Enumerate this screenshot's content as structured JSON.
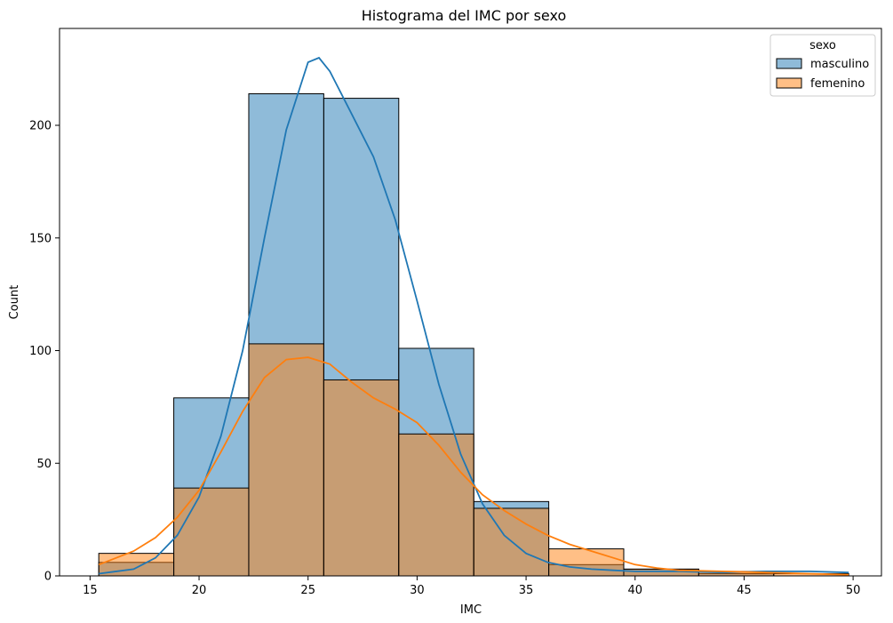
{
  "chart_data": {
    "type": "histogram",
    "title": "Histograma del IMC por sexo",
    "xlabel": "IMC",
    "ylabel": "Count",
    "xlim": [
      13.6,
      51.3
    ],
    "ylim": [
      0,
      243
    ],
    "xticks": [
      "15",
      "20",
      "25",
      "30",
      "35",
      "40",
      "45",
      "50"
    ],
    "yticks": [
      "0",
      "50",
      "100",
      "150",
      "200"
    ],
    "bin_edges": [
      15.4,
      18.84,
      22.28,
      25.72,
      29.16,
      32.6,
      36.04,
      39.48,
      42.92,
      46.36,
      49.8
    ],
    "grid": false,
    "legend": {
      "title": "sexo",
      "position": "top-right"
    },
    "series": [
      {
        "name": "masculino",
        "color": "#1f77b4",
        "counts": [
          6,
          79,
          214,
          212,
          101,
          33,
          5,
          3,
          1,
          0
        ],
        "kde": [
          [
            15.4,
            1
          ],
          [
            17,
            3
          ],
          [
            18,
            8
          ],
          [
            19,
            18
          ],
          [
            20,
            35
          ],
          [
            21,
            62
          ],
          [
            22,
            100
          ],
          [
            23,
            150
          ],
          [
            24,
            198
          ],
          [
            25,
            228
          ],
          [
            25.5,
            230
          ],
          [
            26,
            224
          ],
          [
            27,
            205
          ],
          [
            28,
            186
          ],
          [
            29,
            158
          ],
          [
            30,
            122
          ],
          [
            31,
            85
          ],
          [
            32,
            54
          ],
          [
            33,
            32
          ],
          [
            34,
            18
          ],
          [
            35,
            10
          ],
          [
            36,
            6
          ],
          [
            37,
            4
          ],
          [
            38,
            3
          ],
          [
            39,
            2.5
          ],
          [
            40,
            2
          ],
          [
            42,
            2
          ],
          [
            44,
            1.5
          ],
          [
            46,
            2
          ],
          [
            48,
            2
          ],
          [
            49.8,
            1.5
          ]
        ]
      },
      {
        "name": "femenino",
        "color": "#ff7f0e",
        "counts": [
          10,
          39,
          103,
          87,
          63,
          30,
          12,
          3,
          2,
          1
        ],
        "kde": [
          [
            15.4,
            5
          ],
          [
            17,
            11
          ],
          [
            18,
            17
          ],
          [
            19,
            26
          ],
          [
            20,
            38
          ],
          [
            21,
            55
          ],
          [
            22,
            73
          ],
          [
            23,
            88
          ],
          [
            24,
            96
          ],
          [
            25,
            97
          ],
          [
            26,
            94
          ],
          [
            27,
            86
          ],
          [
            28,
            79
          ],
          [
            29,
            74
          ],
          [
            30,
            68
          ],
          [
            31,
            58
          ],
          [
            32,
            46
          ],
          [
            33,
            36
          ],
          [
            34,
            29
          ],
          [
            35,
            23
          ],
          [
            36,
            18
          ],
          [
            37,
            14
          ],
          [
            38,
            11
          ],
          [
            39,
            8
          ],
          [
            40,
            5
          ],
          [
            41,
            3.5
          ],
          [
            42,
            2.5
          ],
          [
            44,
            2
          ],
          [
            46,
            1.5
          ],
          [
            48,
            1
          ],
          [
            49.8,
            0.5
          ]
        ]
      }
    ]
  }
}
